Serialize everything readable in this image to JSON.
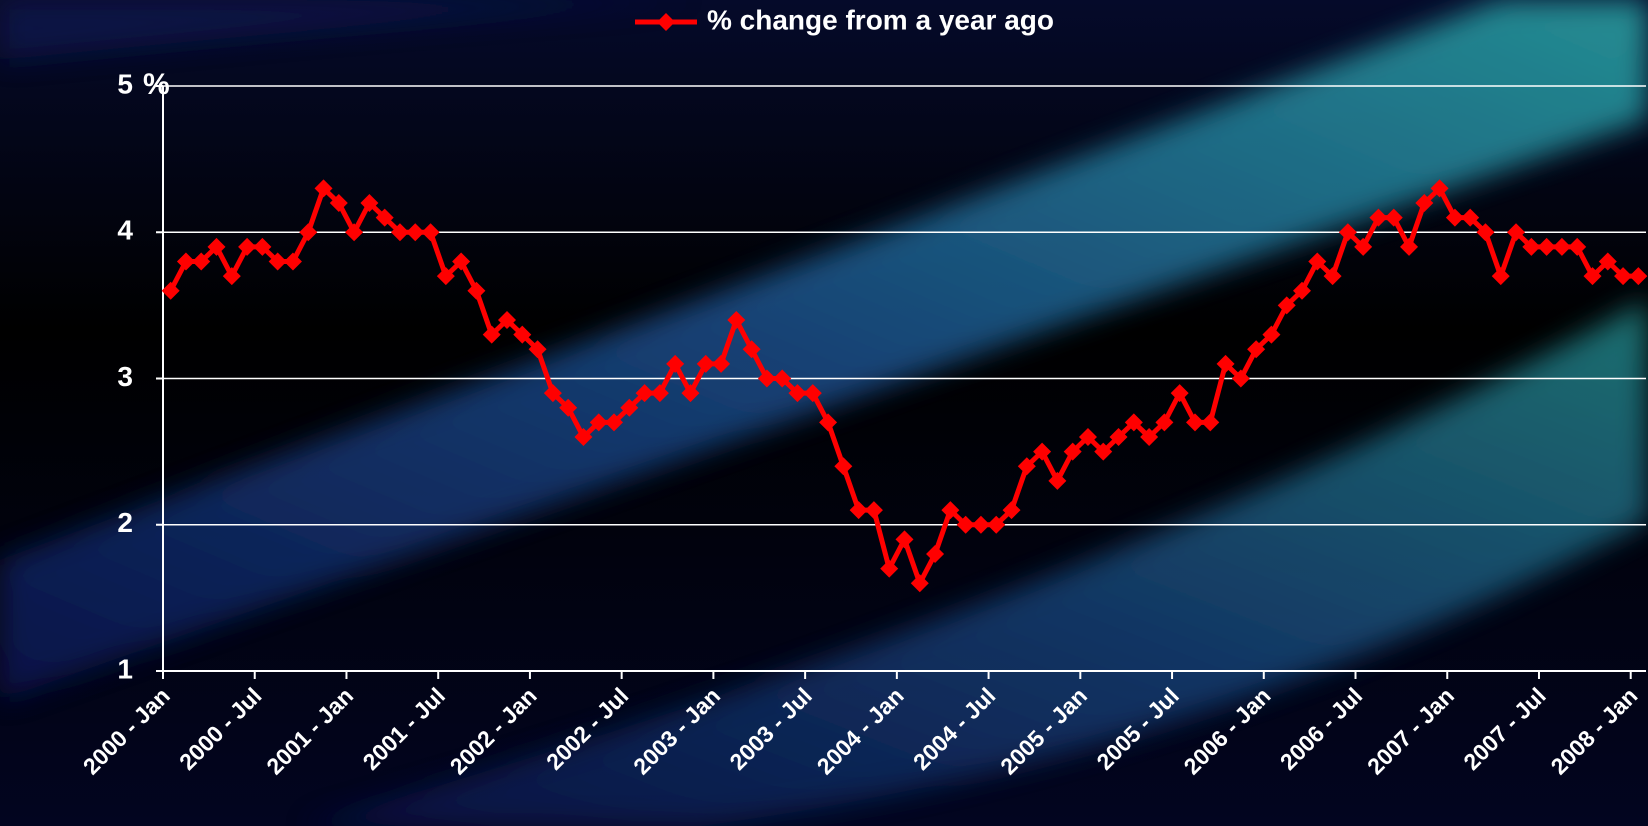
{
  "chart_data": {
    "type": "line",
    "categories": [
      "2000 - Jan",
      null,
      null,
      null,
      null,
      null,
      "2000 - Jul",
      null,
      null,
      null,
      null,
      null,
      "2001 - Jan",
      null,
      null,
      null,
      null,
      null,
      "2001 - Jul",
      null,
      null,
      null,
      null,
      null,
      "2002 - Jan",
      null,
      null,
      null,
      null,
      null,
      "2002 - Jul",
      null,
      null,
      null,
      null,
      null,
      "2003 - Jan",
      null,
      null,
      null,
      null,
      null,
      "2003 - Jul",
      null,
      null,
      null,
      null,
      null,
      "2004 - Jan",
      null,
      null,
      null,
      null,
      null,
      "2004 - Jul",
      null,
      null,
      null,
      null,
      null,
      "2005 - Jan",
      null,
      null,
      null,
      null,
      null,
      "2005 - Jul",
      null,
      null,
      null,
      null,
      null,
      "2006 - Jan",
      null,
      null,
      null,
      null,
      null,
      "2006 - Jul",
      null,
      null,
      null,
      null,
      null,
      "2007 - Jan",
      null,
      null,
      null,
      null,
      null,
      "2007 - Jul",
      null,
      null,
      null,
      null,
      null,
      "2008 - Jan"
    ],
    "series": [
      {
        "name": "% change from a year ago",
        "color": "#ff0000",
        "values": [
          3.6,
          3.8,
          3.8,
          3.9,
          3.7,
          3.9,
          3.9,
          3.8,
          3.8,
          4.0,
          4.3,
          4.2,
          4.0,
          4.2,
          4.1,
          4.0,
          4.0,
          4.0,
          3.7,
          3.8,
          3.6,
          3.3,
          3.4,
          3.3,
          3.2,
          2.9,
          2.8,
          2.6,
          2.7,
          2.7,
          2.8,
          2.9,
          2.9,
          3.1,
          2.9,
          3.1,
          3.1,
          3.4,
          3.2,
          3.0,
          3.0,
          2.9,
          2.9,
          2.7,
          2.4,
          2.1,
          2.1,
          1.7,
          1.9,
          1.6,
          1.8,
          2.1,
          2.0,
          2.0,
          2.0,
          2.1,
          2.4,
          2.5,
          2.3,
          2.5,
          2.6,
          2.5,
          2.6,
          2.7,
          2.6,
          2.7,
          2.9,
          2.7,
          2.7,
          3.1,
          3.0,
          3.2,
          3.3,
          3.5,
          3.6,
          3.8,
          3.7,
          4.0,
          3.9,
          4.1,
          4.1,
          3.9,
          4.2,
          4.3,
          4.1,
          4.1,
          4.0,
          3.7,
          4.0,
          3.9,
          3.9,
          3.9,
          3.9,
          3.7,
          3.8,
          3.7,
          3.7
        ]
      }
    ],
    "y_unit": "%",
    "ylim": [
      1,
      5
    ],
    "yticks": [
      1,
      2,
      3,
      4,
      5
    ],
    "grid": true,
    "legend": "top"
  }
}
